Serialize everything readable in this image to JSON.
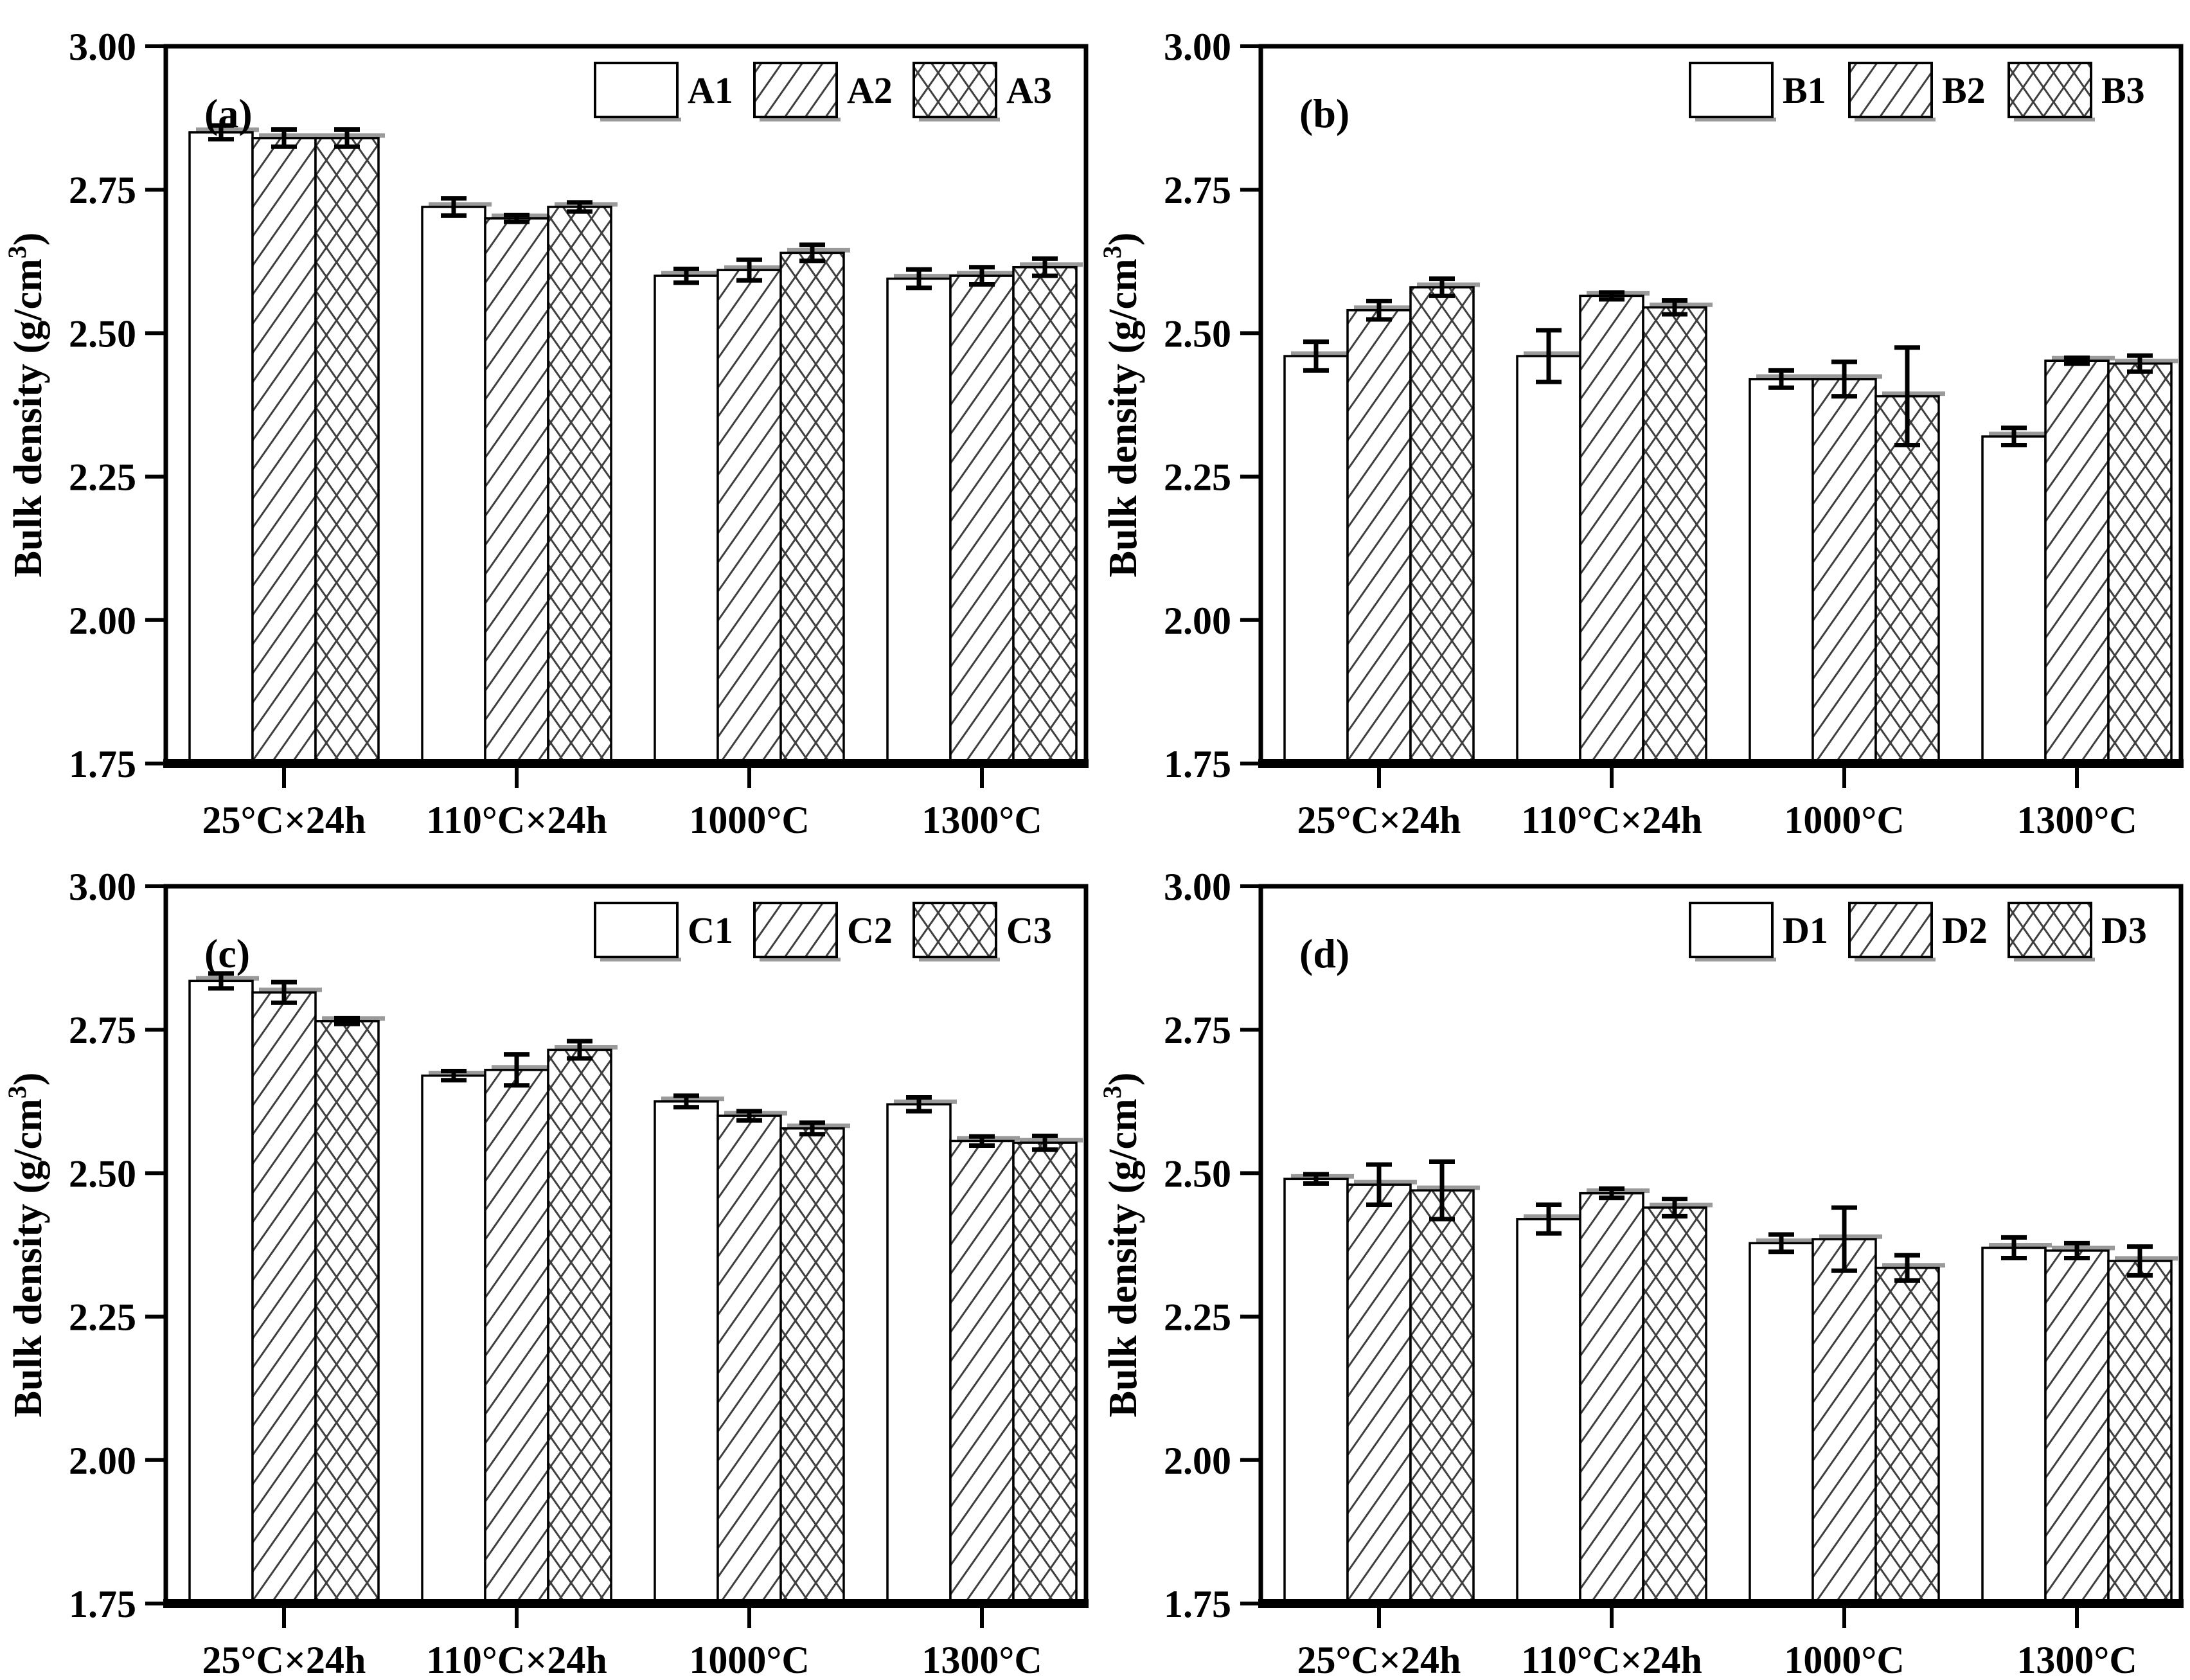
{
  "figure": {
    "background": "#ffffff",
    "ylabel_parts": {
      "main": "Bulk density (g/cm",
      "sup": "3",
      "end": ")"
    },
    "colors": {
      "axis": "#000000",
      "bar_fill": "#ffffff",
      "bar_stroke": "#000000",
      "hatch": "#3f3f3f",
      "shadow": "#9a9a9a",
      "error_bar": "#000000",
      "text": "#000000"
    }
  },
  "chart_data": [
    {
      "type": "bar",
      "panel_label": "(a)",
      "title": "",
      "xlabel": "",
      "ylabel": "Bulk density (g/cm³)",
      "categories": [
        "25°C×24h",
        "110°C×24h",
        "1000°C",
        "1300°C"
      ],
      "ylim": [
        1.75,
        3.0
      ],
      "yticks": [
        3.0,
        2.75,
        2.5,
        2.25,
        2.0,
        1.75
      ],
      "grid": false,
      "legend_position": "top-right",
      "series": [
        {
          "name": "A1",
          "pattern": "plain",
          "values": [
            2.85,
            2.72,
            2.6,
            2.595
          ],
          "errors": [
            0.012,
            0.015,
            0.012,
            0.016
          ]
        },
        {
          "name": "A2",
          "pattern": "diagonal-hatch",
          "values": [
            2.84,
            2.7,
            2.61,
            2.6
          ],
          "errors": [
            0.015,
            0.006,
            0.018,
            0.015
          ]
        },
        {
          "name": "A3",
          "pattern": "cross-hatch",
          "values": [
            2.84,
            2.72,
            2.64,
            2.615
          ],
          "errors": [
            0.015,
            0.008,
            0.014,
            0.015
          ]
        }
      ]
    },
    {
      "type": "bar",
      "panel_label": "(b)",
      "title": "",
      "xlabel": "",
      "ylabel": "Bulk density (g/cm³)",
      "categories": [
        "25°C×24h",
        "110°C×24h",
        "1000°C",
        "1300°C"
      ],
      "ylim": [
        1.75,
        3.0
      ],
      "yticks": [
        3.0,
        2.75,
        2.5,
        2.25,
        2.0,
        1.75
      ],
      "grid": false,
      "legend_position": "top-right",
      "series": [
        {
          "name": "B1",
          "pattern": "plain",
          "values": [
            2.46,
            2.46,
            2.42,
            2.32
          ],
          "errors": [
            0.025,
            0.045,
            0.015,
            0.015
          ]
        },
        {
          "name": "B2",
          "pattern": "diagonal-hatch",
          "values": [
            2.54,
            2.565,
            2.42,
            2.452
          ],
          "errors": [
            0.016,
            0.006,
            0.03,
            0.005
          ]
        },
        {
          "name": "B3",
          "pattern": "cross-hatch",
          "values": [
            2.58,
            2.545,
            2.39,
            2.447
          ],
          "errors": [
            0.015,
            0.012,
            0.085,
            0.014
          ]
        }
      ]
    },
    {
      "type": "bar",
      "panel_label": "(c)",
      "title": "",
      "xlabel": "",
      "ylabel": "Bulk density (g/cm³)",
      "categories": [
        "25°C×24h",
        "110°C×24h",
        "1000°C",
        "1300°C"
      ],
      "ylim": [
        1.75,
        3.0
      ],
      "yticks": [
        3.0,
        2.75,
        2.5,
        2.25,
        2.0,
        1.75
      ],
      "grid": false,
      "legend_position": "top-right",
      "series": [
        {
          "name": "C1",
          "pattern": "plain",
          "values": [
            2.835,
            2.67,
            2.625,
            2.62
          ],
          "errors": [
            0.013,
            0.008,
            0.01,
            0.012
          ]
        },
        {
          "name": "C2",
          "pattern": "diagonal-hatch",
          "values": [
            2.815,
            2.68,
            2.6,
            2.556
          ],
          "errors": [
            0.018,
            0.027,
            0.008,
            0.008
          ]
        },
        {
          "name": "C3",
          "pattern": "cross-hatch",
          "values": [
            2.765,
            2.715,
            2.578,
            2.553
          ],
          "errors": [
            0.005,
            0.015,
            0.01,
            0.012
          ]
        }
      ]
    },
    {
      "type": "bar",
      "panel_label": "(d)",
      "title": "",
      "xlabel": "",
      "ylabel": "Bulk density (g/cm³)",
      "categories": [
        "25°C×24h",
        "110°C×24h",
        "1000°C",
        "1300°C"
      ],
      "ylim": [
        1.75,
        3.0
      ],
      "yticks": [
        3.0,
        2.75,
        2.5,
        2.25,
        2.0,
        1.75
      ],
      "grid": false,
      "legend_position": "top-right",
      "series": [
        {
          "name": "D1",
          "pattern": "plain",
          "values": [
            2.49,
            2.42,
            2.378,
            2.37
          ],
          "errors": [
            0.008,
            0.025,
            0.015,
            0.018
          ]
        },
        {
          "name": "D2",
          "pattern": "diagonal-hatch",
          "values": [
            2.48,
            2.465,
            2.385,
            2.365
          ],
          "errors": [
            0.035,
            0.008,
            0.055,
            0.013
          ]
        },
        {
          "name": "D3",
          "pattern": "cross-hatch",
          "values": [
            2.47,
            2.44,
            2.335,
            2.347
          ],
          "errors": [
            0.05,
            0.015,
            0.022,
            0.025
          ]
        }
      ]
    }
  ]
}
